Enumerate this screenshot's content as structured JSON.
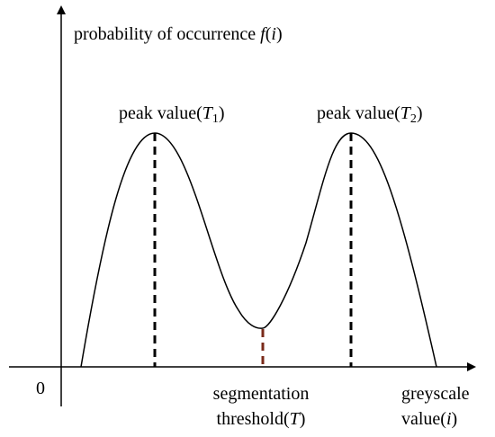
{
  "y_axis_label": [
    "probability of occurrence ",
    "f",
    "(",
    "i",
    ")"
  ],
  "origin_label": "0",
  "peak_1_label": [
    "peak value(",
    "T",
    "1",
    ")"
  ],
  "peak_2_label": [
    "peak value(",
    "T",
    "2",
    ")"
  ],
  "threshold_label": {
    "line_1": "segmentation",
    "line_2": [
      "threshold(",
      "T",
      ")"
    ]
  },
  "x_axis_label": {
    "line_1": "greyscale",
    "line_2": [
      "value(",
      "i",
      ")"
    ]
  }
}
